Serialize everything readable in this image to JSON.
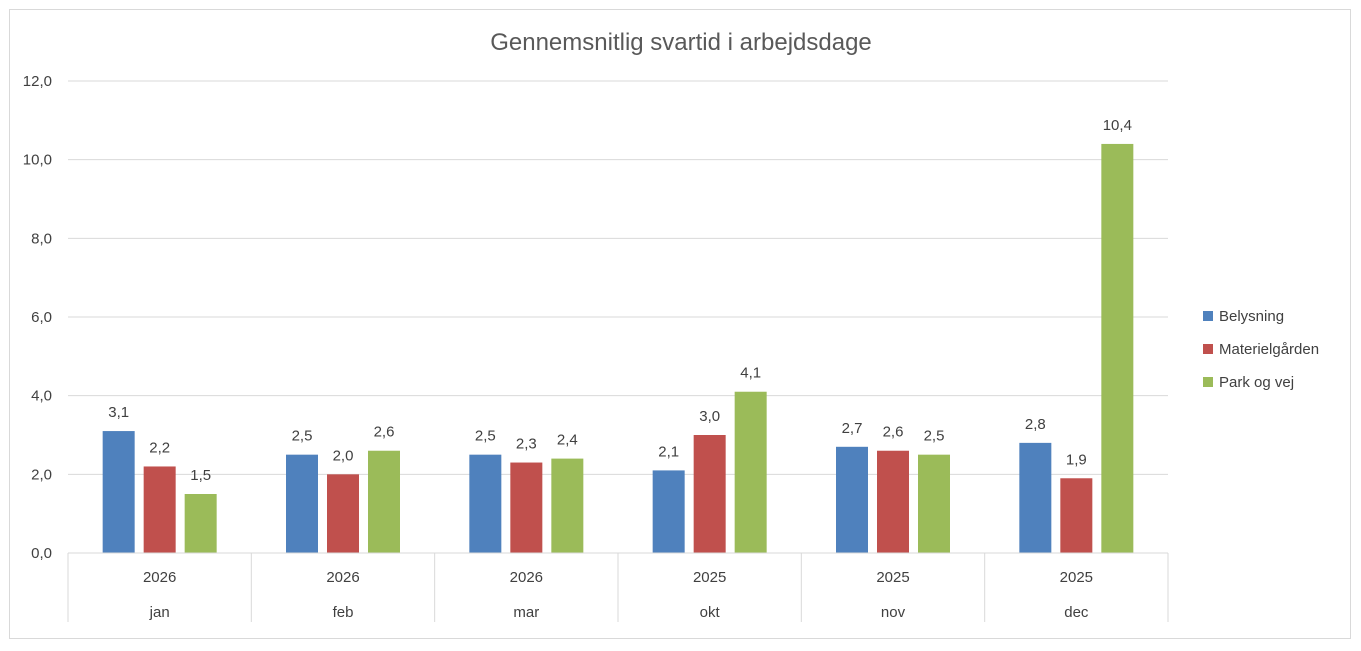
{
  "chart_data": {
    "type": "bar",
    "title": "Gennemsnitlig svartid i arbejdsdage",
    "categories": [
      {
        "year": "2026",
        "month": "jan"
      },
      {
        "year": "2026",
        "month": "feb"
      },
      {
        "year": "2026",
        "month": "mar"
      },
      {
        "year": "2025",
        "month": "okt"
      },
      {
        "year": "2025",
        "month": "nov"
      },
      {
        "year": "2025",
        "month": "dec"
      }
    ],
    "series": [
      {
        "name": "Belysning",
        "color": "#4f81bd",
        "values": [
          3.1,
          2.5,
          2.5,
          2.1,
          2.7,
          2.8
        ],
        "labels": [
          "3,1",
          "2,5",
          "2,5",
          "2,1",
          "2,7",
          "2,8"
        ]
      },
      {
        "name": "Materielgården",
        "color": "#c0504d",
        "values": [
          2.2,
          2.0,
          2.3,
          3.0,
          2.6,
          1.9
        ],
        "labels": [
          "2,2",
          "2,0",
          "2,3",
          "3,0",
          "2,6",
          "1,9"
        ]
      },
      {
        "name": "Park og vej",
        "color": "#9bbb59",
        "values": [
          1.5,
          2.6,
          2.4,
          4.1,
          2.5,
          10.4
        ],
        "labels": [
          "1,5",
          "2,6",
          "2,4",
          "4,1",
          "2,5",
          "10,4"
        ]
      }
    ],
    "ylim": [
      0,
      12
    ],
    "yticks": [
      "0,0",
      "2,0",
      "4,0",
      "6,0",
      "8,0",
      "10,0",
      "12,0"
    ],
    "grid": true,
    "legend_position": "right",
    "gridline_color": "#d9d9d9"
  }
}
